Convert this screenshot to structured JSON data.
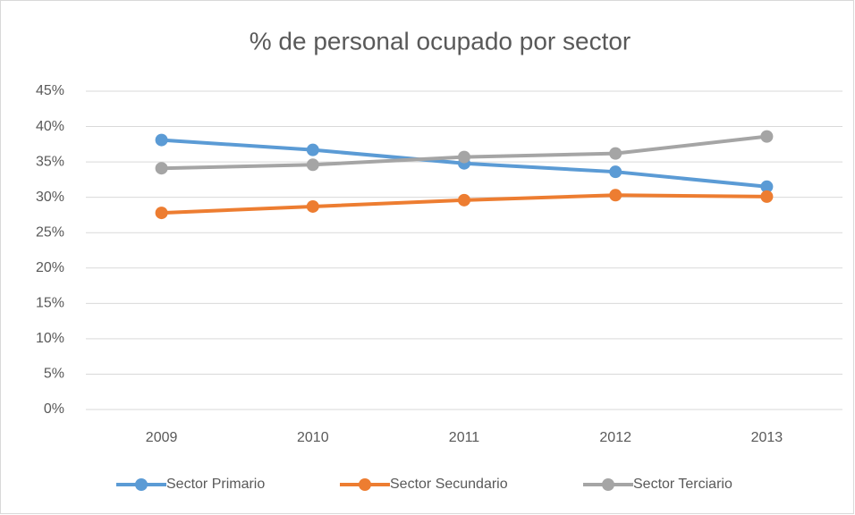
{
  "chart_data": {
    "type": "line",
    "title": "% de personal ocupado por sector",
    "categories": [
      "2009",
      "2010",
      "2011",
      "2012",
      "2013"
    ],
    "series": [
      {
        "name": "Sector Primario",
        "color": "#5b9bd5",
        "values": [
          38.1,
          36.7,
          34.8,
          33.6,
          31.5
        ]
      },
      {
        "name": "Sector Secundario",
        "color": "#ed7d31",
        "values": [
          27.8,
          28.7,
          29.6,
          30.3,
          30.1
        ]
      },
      {
        "name": "Sector Terciario",
        "color": "#a5a5a5",
        "values": [
          34.1,
          34.6,
          35.7,
          36.2,
          38.6
        ]
      }
    ],
    "ylim": [
      0,
      45
    ],
    "yticks": [
      {
        "value": 0,
        "label": "0%"
      },
      {
        "value": 5,
        "label": "5%"
      },
      {
        "value": 10,
        "label": "10%"
      },
      {
        "value": 15,
        "label": "15%"
      },
      {
        "value": 20,
        "label": "20%"
      },
      {
        "value": 25,
        "label": "25%"
      },
      {
        "value": 30,
        "label": "30%"
      },
      {
        "value": 35,
        "label": "35%"
      },
      {
        "value": 40,
        "label": "40%"
      },
      {
        "value": 45,
        "label": "45%"
      }
    ],
    "grid": true,
    "legend": "bottom"
  }
}
